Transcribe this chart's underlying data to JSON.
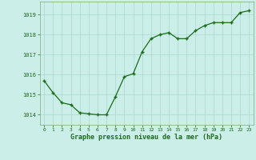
{
  "x": [
    0,
    1,
    2,
    3,
    4,
    5,
    6,
    7,
    8,
    9,
    10,
    11,
    12,
    13,
    14,
    15,
    16,
    17,
    18,
    19,
    20,
    21,
    22,
    23
  ],
  "y": [
    1015.7,
    1015.1,
    1014.6,
    1014.5,
    1014.1,
    1014.05,
    1014.0,
    1014.0,
    1014.9,
    1015.9,
    1016.05,
    1017.15,
    1017.8,
    1018.0,
    1018.1,
    1017.8,
    1017.8,
    1018.2,
    1018.45,
    1018.6,
    1018.6,
    1018.6,
    1019.1,
    1019.2
  ],
  "line_color": "#1a6b1a",
  "marker_color": "#1a6b1a",
  "bg_color": "#cceee8",
  "grid_color": "#a8d8d0",
  "xlabel": "Graphe pression niveau de la mer (hPa)",
  "xlabel_color": "#1a6b1a",
  "ylabel_ticks": [
    1014,
    1015,
    1016,
    1017,
    1018,
    1019
  ],
  "ylim": [
    1013.5,
    1019.65
  ],
  "xlim": [
    -0.5,
    23.5
  ],
  "tick_color": "#1a6b1a",
  "spine_color": "#7aaa7a"
}
